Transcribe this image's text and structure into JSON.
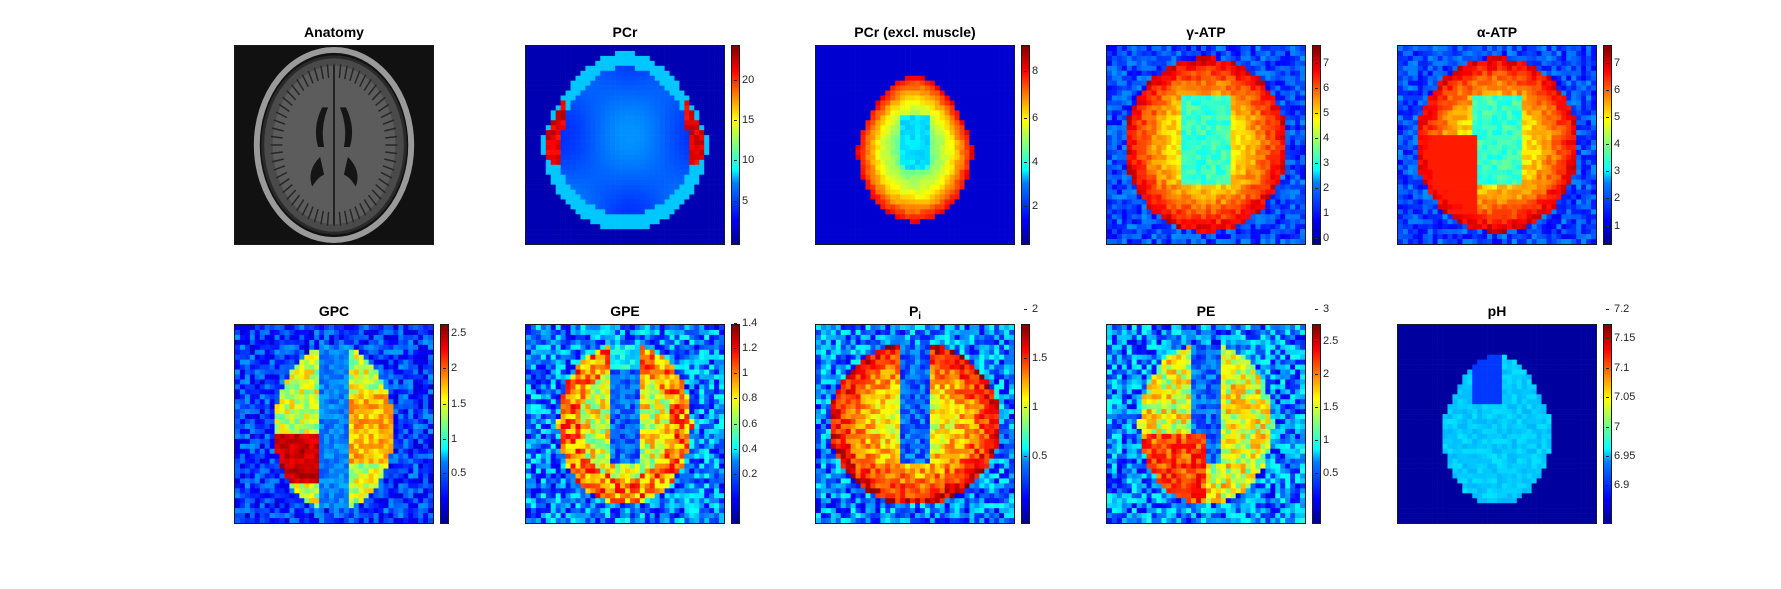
{
  "panels": [
    {
      "title": "Anatomy",
      "kind": "anatomy",
      "ticks": []
    },
    {
      "title": "PCr",
      "kind": "pcr",
      "ticks": [
        "20",
        "15",
        "10",
        "5"
      ]
    },
    {
      "title": "PCr (excl. muscle)",
      "kind": "pcrx",
      "ticks": [
        "8",
        "6",
        "4",
        "2"
      ]
    },
    {
      "title": "γ-ATP",
      "kind": "atp",
      "ticks": [
        "7",
        "6",
        "5",
        "4",
        "3",
        "2",
        "1",
        "0"
      ]
    },
    {
      "title": "α-ATP",
      "kind": "atp2",
      "ticks": [
        "7",
        "6",
        "5",
        "4",
        "3",
        "2",
        "1"
      ]
    },
    {
      "title": "GPC",
      "kind": "gpc",
      "ticks": [
        "2.5",
        "2",
        "1.5",
        "1",
        "0.5"
      ]
    },
    {
      "title": "GPE",
      "kind": "gpe",
      "ticks": [
        "1.4",
        "1.2",
        "1",
        "0.8",
        "0.6",
        "0.4",
        "0.2"
      ]
    },
    {
      "title": "P",
      "title_sub": "i",
      "kind": "pi",
      "ticks": [
        "2",
        "1.5",
        "1",
        "0.5"
      ]
    },
    {
      "title": "PE",
      "kind": "pe",
      "ticks": [
        "3",
        "2.5",
        "2",
        "1.5",
        "1",
        "0.5"
      ]
    },
    {
      "title": "pH",
      "kind": "ph",
      "ticks": [
        "7.2",
        "7.15",
        "7.1",
        "7.05",
        "7",
        "6.95",
        "6.9"
      ]
    }
  ],
  "colors": {
    "low": "#00008f",
    "high": "#800000"
  }
}
